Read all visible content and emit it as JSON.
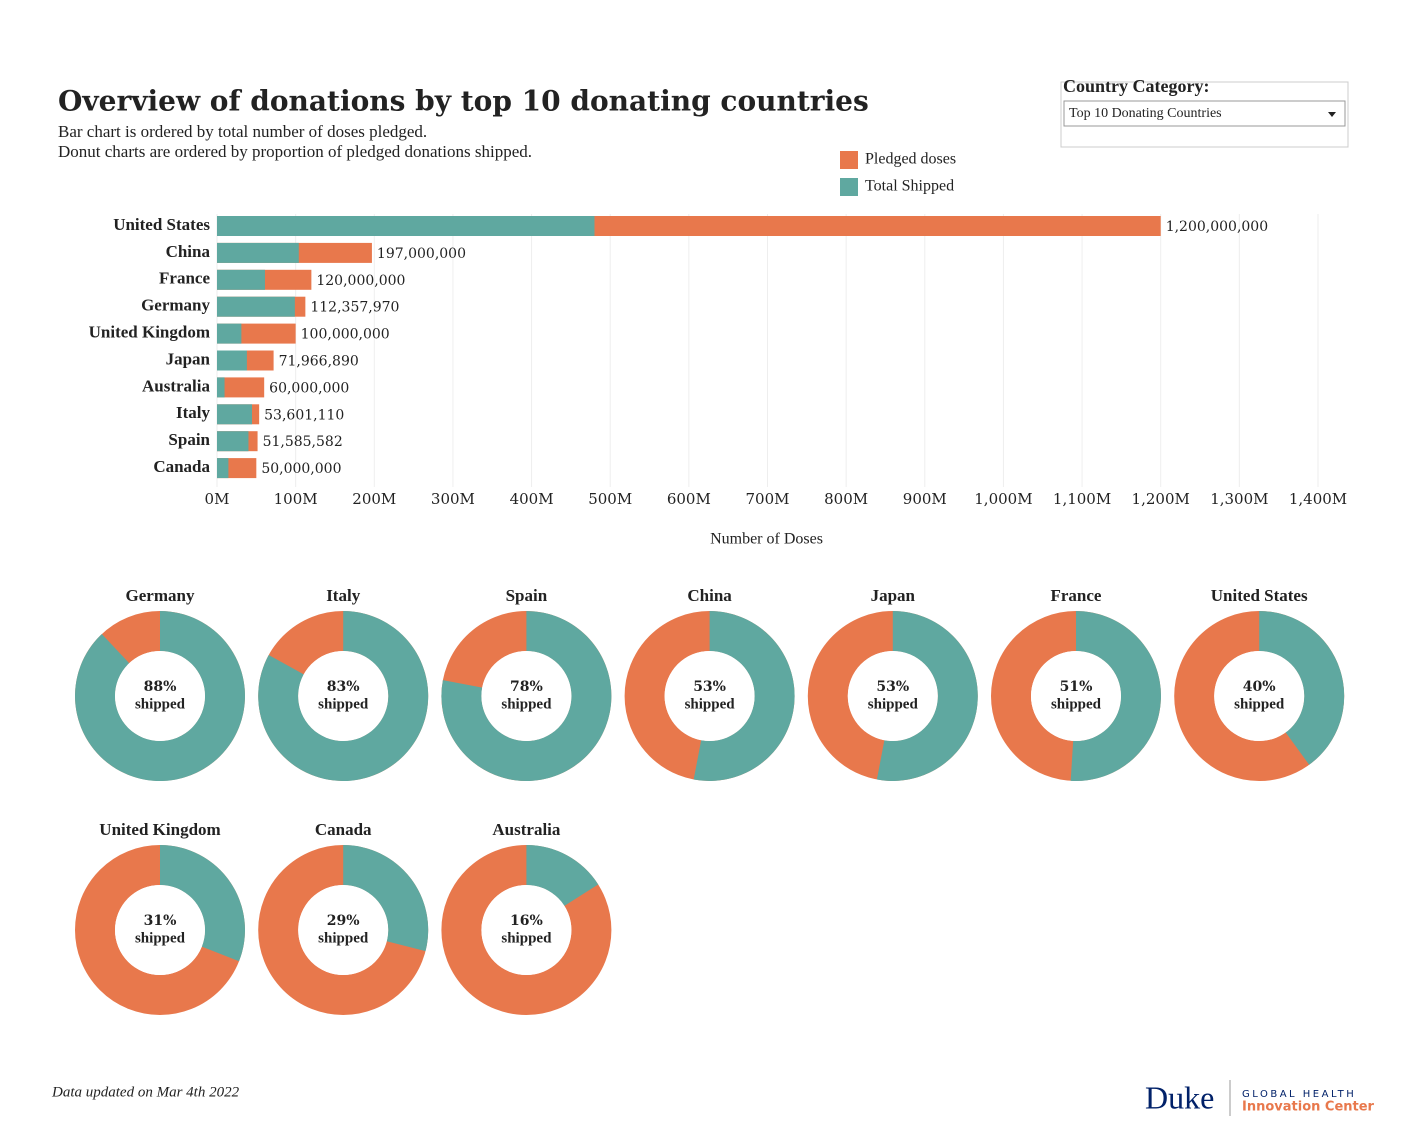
{
  "header": {
    "title": "Overview of donations by top 10 donating countries",
    "subtitle": [
      "Bar chart is ordered by total number of doses pledged.",
      "Donut charts are ordered by proportion of pledged donations shipped."
    ]
  },
  "filter": {
    "label": "Country Category:",
    "selected": "Top 10 Donating Countries"
  },
  "chart_data": [
    {
      "type": "bar",
      "orientation": "horizontal",
      "layout": "overlay",
      "categories": [
        "United States",
        "China",
        "France",
        "Germany",
        "United Kingdom",
        "Japan",
        "Australia",
        "Italy",
        "Spain",
        "Canada"
      ],
      "series": [
        {
          "name": "Pledged doses",
          "color": "#e8784c",
          "values": [
            1200000000,
            197000000,
            120000000,
            112357970,
            100000000,
            71966890,
            60000000,
            53601110,
            51585582,
            50000000
          ],
          "value_labels": [
            "1,200,000,000",
            "197,000,000",
            "120,000,000",
            "112,357,970",
            "100,000,000",
            "71,966,890",
            "60,000,000",
            "53,601,110",
            "51,585,582",
            "50,000,000"
          ]
        },
        {
          "name": "Total Shipped",
          "color": "#5fa8a0",
          "values": [
            480000000,
            104000000,
            61000000,
            99000000,
            31000000,
            38000000,
            9600000,
            44500000,
            40000000,
            14500000
          ]
        }
      ],
      "xlim": [
        0,
        1400000000
      ],
      "xticks": [
        {
          "value": 0,
          "label": "0M"
        },
        {
          "value": 100000000,
          "label": "100M"
        },
        {
          "value": 200000000,
          "label": "200M"
        },
        {
          "value": 300000000,
          "label": "300M"
        },
        {
          "value": 400000000,
          "label": "400M"
        },
        {
          "value": 500000000,
          "label": "500M"
        },
        {
          "value": 600000000,
          "label": "600M"
        },
        {
          "value": 700000000,
          "label": "700M"
        },
        {
          "value": 800000000,
          "label": "800M"
        },
        {
          "value": 900000000,
          "label": "900M"
        },
        {
          "value": 1000000000,
          "label": "1,000M"
        },
        {
          "value": 1100000000,
          "label": "1,100M"
        },
        {
          "value": 1200000000,
          "label": "1,200M"
        },
        {
          "value": 1300000000,
          "label": "1,300M"
        },
        {
          "value": 1400000000,
          "label": "1,400M"
        }
      ],
      "xlabel": "Number of Doses",
      "grid": true,
      "legend": "top-right"
    },
    {
      "type": "donut",
      "categories": [
        "Germany",
        "Italy",
        "Spain",
        "China",
        "Japan",
        "France",
        "United States",
        "United Kingdom",
        "Canada",
        "Australia"
      ],
      "values": [
        88,
        83,
        78,
        53,
        53,
        51,
        40,
        31,
        29,
        16
      ],
      "value_labels": [
        "88%",
        "83%",
        "78%",
        "53%",
        "53%",
        "51%",
        "40%",
        "31%",
        "29%",
        "16%"
      ],
      "center_label": "shipped",
      "color": "#5fa8a0",
      "rest_color": "#e8784c",
      "ylim": [
        0,
        100
      ]
    }
  ],
  "footer": {
    "note": "Data updated on Mar 4th 2022",
    "logo": "Duke",
    "logo_sub": [
      "GLOBAL HEALTH",
      "Innovation Center"
    ]
  }
}
